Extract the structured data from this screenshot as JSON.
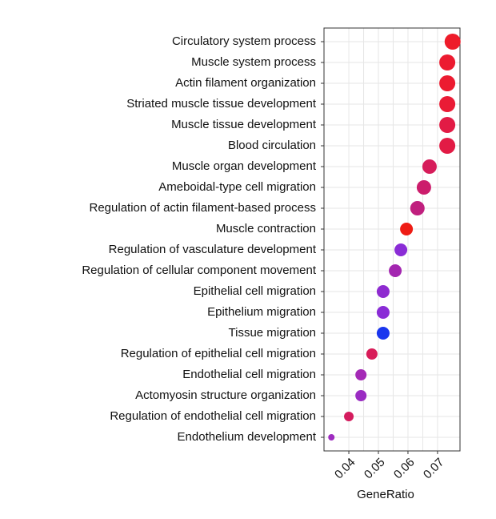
{
  "chart_data": {
    "type": "dot",
    "x_label": "GeneRatio",
    "categories": [
      "Circulatory system process",
      "Muscle system process",
      "Actin filament organization",
      "Striated muscle tissue development",
      "Muscle tissue development",
      "Blood circulation",
      "Muscle organ development",
      "Ameboidal-type cell migration",
      "Regulation of actin filament-based process",
      "Muscle contraction",
      "Regulation of vasculature development",
      "Regulation of cellular component movement",
      "Epithelial cell migration",
      "Epithelium migration",
      "Tissue migration",
      "Regulation of epithelial cell migration",
      "Endothelial cell migration",
      "Actomyosin structure organization",
      "Regulation of endothelial cell migration",
      "Endothelium development"
    ],
    "values": [
      0.0751,
      0.0733,
      0.0733,
      0.0733,
      0.0733,
      0.0733,
      0.0673,
      0.0654,
      0.0632,
      0.0595,
      0.0576,
      0.0557,
      0.0516,
      0.0516,
      0.0516,
      0.0478,
      0.0441,
      0.0441,
      0.04,
      0.0341
    ],
    "sizes": [
      10,
      10,
      10,
      10,
      10,
      10,
      9,
      9,
      9,
      8,
      8,
      8,
      8,
      8,
      8,
      7,
      7,
      7,
      6,
      4
    ],
    "colors": [
      "#ee1c2a",
      "#ec1b30",
      "#ec1b30",
      "#ea1b35",
      "#e21b45",
      "#e21b45",
      "#d61c5a",
      "#cc1d6c",
      "#c01f7e",
      "#ee1c14",
      "#8a2cd6",
      "#a326b0",
      "#8e2bd0",
      "#8a2cd6",
      "#1a36ee",
      "#d81c58",
      "#a42ab6",
      "#9a2cc2",
      "#d41c5e",
      "#9e2cc0"
    ],
    "xlim": [
      0.0316,
      0.0776
    ],
    "xticks": [
      0.04,
      0.05,
      0.06,
      0.07
    ],
    "grid": true
  }
}
